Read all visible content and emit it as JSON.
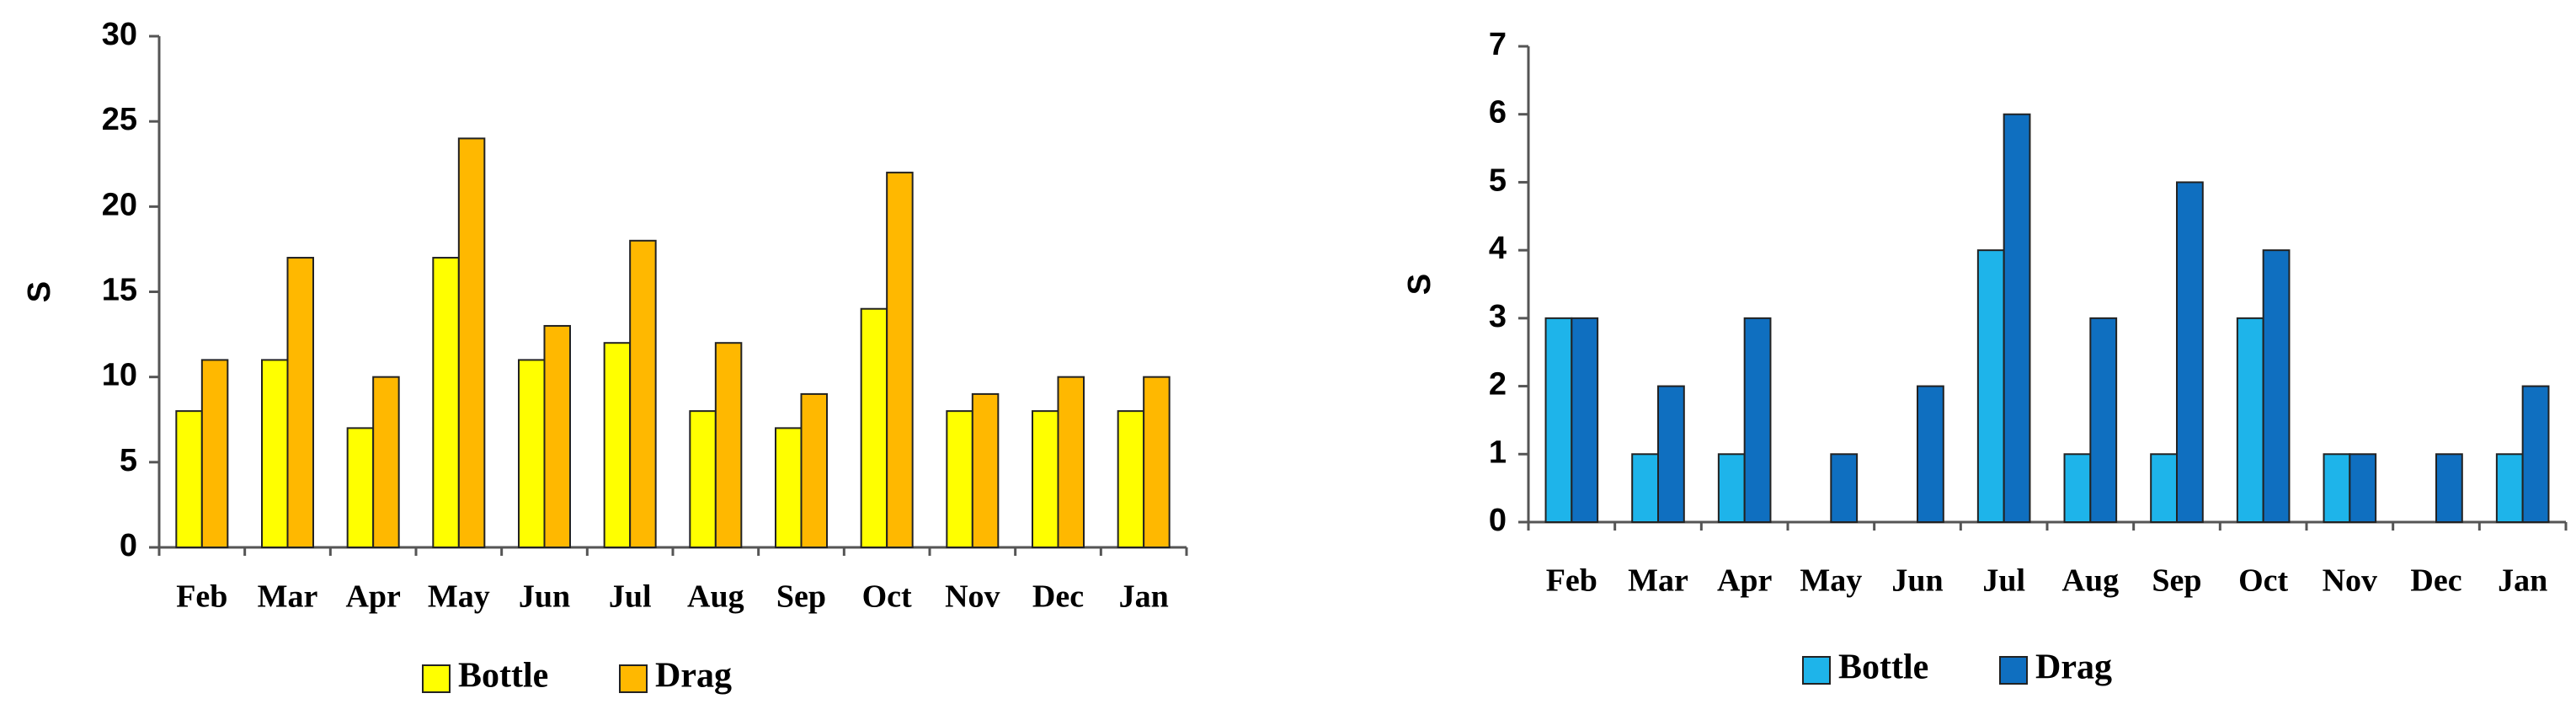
{
  "chart_data": [
    {
      "type": "bar",
      "y_label": "S",
      "categories": [
        "Feb",
        "Mar",
        "Apr",
        "May",
        "Jun",
        "Jul",
        "Aug",
        "Sep",
        "Oct",
        "Nov",
        "Dec",
        "Jan"
      ],
      "series": [
        {
          "name": "Bottle",
          "color": "#ffff00",
          "values": [
            8,
            11,
            7,
            17,
            11,
            12,
            8,
            7,
            14,
            8,
            8,
            8
          ]
        },
        {
          "name": "Drag",
          "color": "#ffb800",
          "values": [
            11,
            17,
            10,
            24,
            13,
            18,
            12,
            9,
            22,
            9,
            10,
            10
          ]
        }
      ],
      "ylim": [
        0,
        30
      ],
      "yticks": [
        0,
        5,
        10,
        15,
        20,
        25,
        30
      ],
      "grid": false,
      "legend": "bottom"
    },
    {
      "type": "bar",
      "y_label": "S",
      "categories": [
        "Feb",
        "Mar",
        "Apr",
        "May",
        "Jun",
        "Jul",
        "Aug",
        "Sep",
        "Oct",
        "Nov",
        "Dec",
        "Jan"
      ],
      "series": [
        {
          "name": "Bottle",
          "color": "#1eb4ea",
          "values": [
            3,
            1,
            1,
            0,
            0,
            4,
            1,
            1,
            3,
            1,
            0,
            1
          ]
        },
        {
          "name": "Drag",
          "color": "#0f6fc0",
          "values": [
            3,
            2,
            3,
            1,
            2,
            6,
            3,
            5,
            4,
            1,
            1,
            2
          ]
        }
      ],
      "ylim": [
        0,
        7
      ],
      "yticks": [
        0,
        1,
        2,
        3,
        4,
        5,
        6,
        7
      ],
      "grid": false,
      "legend": "bottom"
    }
  ]
}
